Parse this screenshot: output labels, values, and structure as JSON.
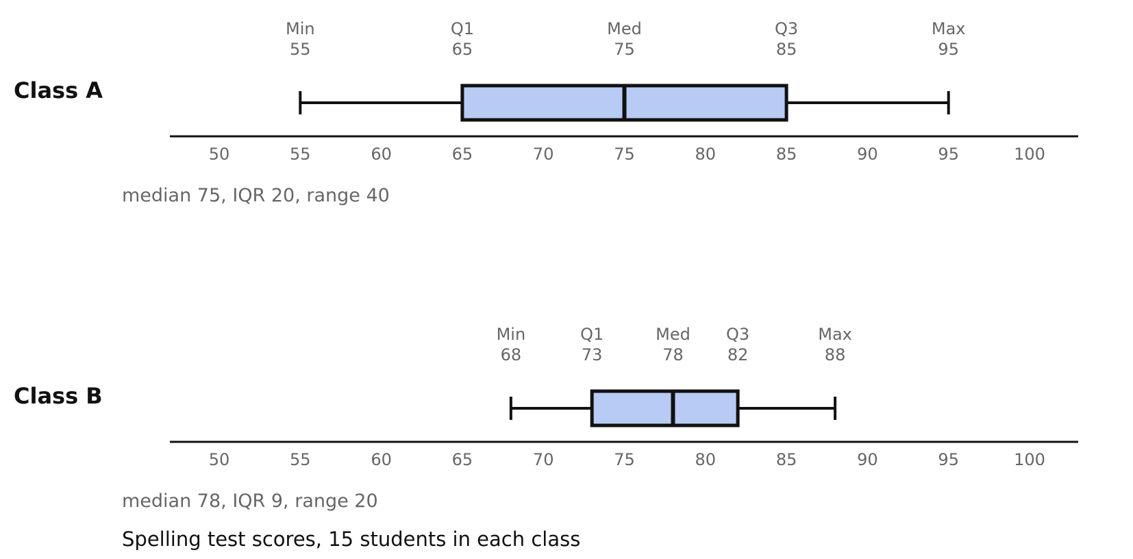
{
  "chart_data": {
    "type": "box",
    "caption": "Spelling test scores, 15 students in each class",
    "x_ticks": [
      50,
      55,
      60,
      65,
      70,
      75,
      80,
      85,
      90,
      95,
      100
    ],
    "xlim": [
      47,
      103
    ],
    "colors": {
      "box_fill": "#b8cbf4",
      "stroke": "#111111",
      "muted_text": "#666666"
    },
    "stat_names": [
      "Min",
      "Q1",
      "Med",
      "Q3",
      "Max"
    ],
    "series": [
      {
        "name": "Class A",
        "min": 55,
        "q1": 65,
        "median": 75,
        "q3": 85,
        "max": 95,
        "summary": "median 75,  IQR 20,  range 40"
      },
      {
        "name": "Class B",
        "min": 68,
        "q1": 73,
        "median": 78,
        "q3": 82,
        "max": 88,
        "summary": "median 78,  IQR 9,  range 20"
      }
    ]
  }
}
